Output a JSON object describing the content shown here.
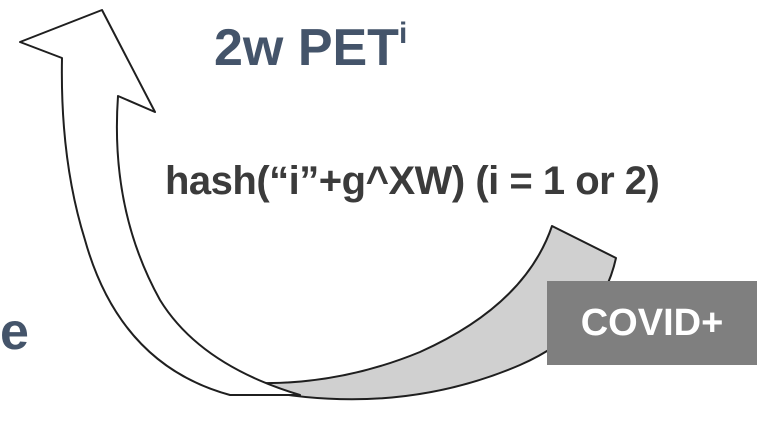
{
  "title": {
    "main": "2w PET",
    "superscript": "i"
  },
  "formula": "hash(“i”+g^XW) (i = 1 or 2)",
  "edge_text": "e",
  "badge": {
    "label": "COVID+"
  },
  "colors": {
    "title_text": "#44546a",
    "formula_text": "#3b3b3b",
    "badge_bg": "#7f7f7f",
    "badge_text": "#ffffff",
    "gray_arrow_fill": "#d0d0d0",
    "white_arrow_fill": "#ffffff",
    "outline": "#1f1f1f"
  }
}
